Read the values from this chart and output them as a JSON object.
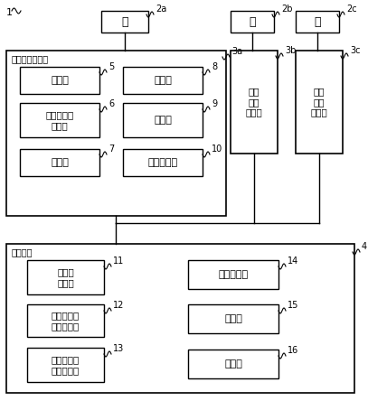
{
  "bg_color": "#ffffff",
  "figure_size": [
    4.07,
    4.44
  ],
  "dpi": 100,
  "door_2a_text": "门",
  "door_2b_text": "门",
  "door_2c_text": "门",
  "terminal_3a_label": "生物体认证终端",
  "terminal_3b_label": "生物\n体认\n证终端",
  "terminal_3c_label": "生物\n体认\n证终端",
  "center_label": "中心装置",
  "box5_text": "通信部",
  "box5_num": "5",
  "box6_text": "利用者信息\n取得部",
  "box6_num": "6",
  "box7_text": "读取部",
  "box7_num": "7",
  "box8_text": "核对部",
  "box8_num": "8",
  "box9_text": "开锁部",
  "box9_num": "9",
  "box10_text": "更新请求部",
  "box10_num": "10",
  "box11_text": "组信息\n存储部",
  "box11_num": "11",
  "box12_text": "登记生物体\n信息存储部",
  "box12_num": "12",
  "box13_text": "过去生物体\n信息存储部",
  "box13_num": "13",
  "box14_text": "中央通信部",
  "box14_num": "14",
  "box15_text": "取得部",
  "box15_num": "15",
  "box16_text": "更新部",
  "box16_num": "16"
}
